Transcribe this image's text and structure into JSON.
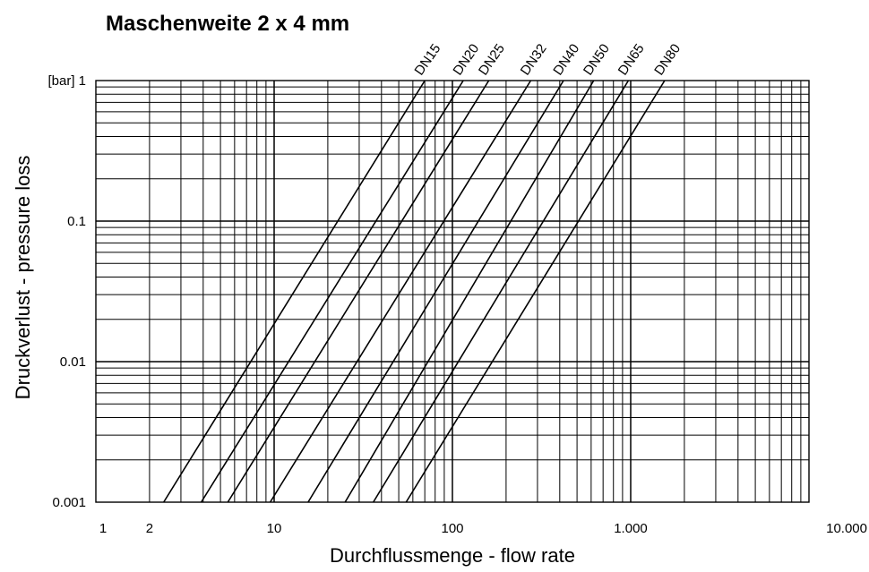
{
  "chart_data": {
    "type": "line",
    "title": "Maschenweite 2 x 4 mm",
    "xlabel": "Durchflussmenge - flow rate",
    "ylabel": "Druckverlust - pressure loss",
    "xscale": "log",
    "yscale": "log",
    "xlim": [
      1,
      10000
    ],
    "ylim": [
      0.001,
      1
    ],
    "grid": true,
    "xtick_labels": [
      {
        "value": 1,
        "label": "1"
      },
      {
        "value": 2,
        "label": "2"
      },
      {
        "value": 10,
        "label": "10"
      },
      {
        "value": 100,
        "label": "100"
      },
      {
        "value": 1000,
        "label": "1.000"
      },
      {
        "value": 10000,
        "label": "10.000"
      }
    ],
    "ytick_labels": [
      {
        "value": 1,
        "label": "[bar] 1"
      },
      {
        "value": 0.1,
        "label": "0.1"
      },
      {
        "value": 0.01,
        "label": "0.01"
      },
      {
        "value": 0.001,
        "label": "0.001"
      }
    ],
    "series": [
      {
        "name": "DN15",
        "x": [
          2.4,
          70
        ],
        "y": [
          0.001,
          1
        ]
      },
      {
        "name": "DN20",
        "x": [
          3.9,
          115
        ],
        "y": [
          0.001,
          1
        ]
      },
      {
        "name": "DN25",
        "x": [
          5.5,
          160
        ],
        "y": [
          0.001,
          1
        ]
      },
      {
        "name": "DN32",
        "x": [
          9.5,
          275
        ],
        "y": [
          0.001,
          1
        ]
      },
      {
        "name": "DN40",
        "x": [
          15.5,
          420
        ],
        "y": [
          0.001,
          1
        ]
      },
      {
        "name": "DN50",
        "x": [
          25,
          620
        ],
        "y": [
          0.001,
          1
        ]
      },
      {
        "name": "DN65",
        "x": [
          36,
          970
        ],
        "y": [
          0.001,
          1
        ]
      },
      {
        "name": "DN80",
        "x": [
          55,
          1550
        ],
        "y": [
          0.001,
          1
        ]
      }
    ]
  }
}
